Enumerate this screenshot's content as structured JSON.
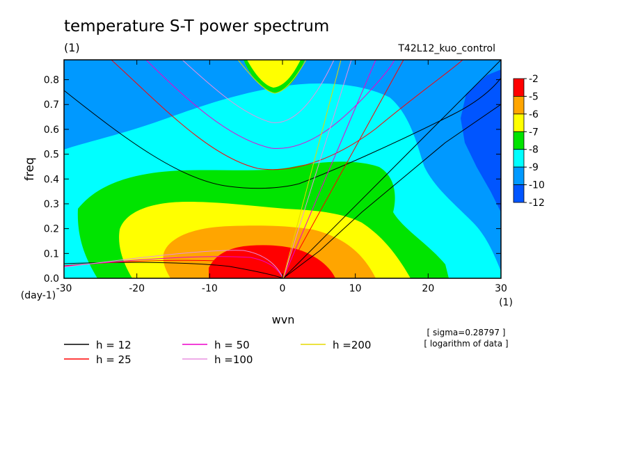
{
  "chart_data": {
    "type": "heatmap",
    "title": "temperature S-T power spectrum",
    "subtitle": "(1)",
    "run_label": "T42L12_kuo_control",
    "xlabel": "wvn",
    "ylabel": "freq",
    "x_unit": "(1)",
    "y_unit": "(day-1)",
    "xlim": [
      -30,
      30
    ],
    "ylim": [
      0,
      0.88
    ],
    "x_ticks": [
      -30,
      -20,
      -10,
      0,
      10,
      20,
      30
    ],
    "x_tick_labels": [
      "-30",
      "-20",
      "-10",
      "0",
      "10",
      "20",
      "30"
    ],
    "y_ticks": [
      0,
      0.1,
      0.2,
      0.3,
      0.4,
      0.5,
      0.6,
      0.7,
      0.8
    ],
    "y_tick_labels": [
      "0.0",
      "0.1",
      "0.2",
      "0.3",
      "0.4",
      "0.5",
      "0.6",
      "0.7",
      "0.8"
    ],
    "colorbar": {
      "labels": [
        "-2",
        "-5",
        "-6",
        "-7",
        "-8",
        "-9",
        "-10",
        "-12"
      ],
      "colors": [
        "#ff0000",
        "#ffa500",
        "#ffff00",
        "#00e400",
        "#00ffff",
        "#0099ff",
        "#0055ff"
      ]
    },
    "notes": [
      "[ sigma=0.28797 ]",
      "[ logarithm of data ]"
    ],
    "dispersion_curves": [
      {
        "name": "h = 12",
        "color": "#000000"
      },
      {
        "name": "h = 25",
        "color": "#ff0000"
      },
      {
        "name": "h = 50",
        "color": "#ee00cc"
      },
      {
        "name": "h =100",
        "color": "#e890e0"
      },
      {
        "name": "h =200",
        "color": "#e6d800"
      }
    ],
    "legend_position": "bottom"
  }
}
